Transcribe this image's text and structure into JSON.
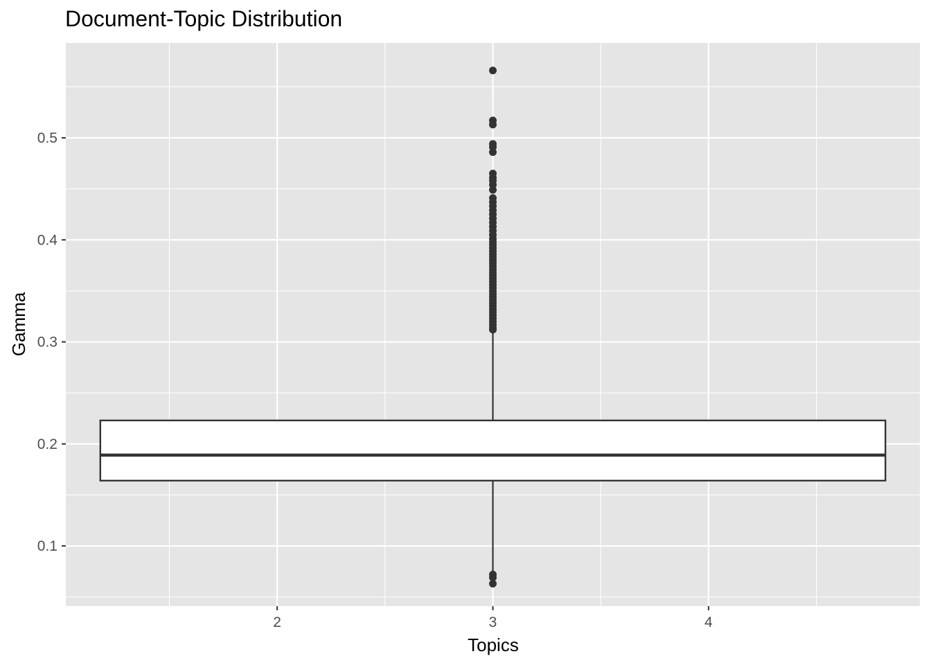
{
  "chart_data": {
    "type": "boxplot",
    "title": "Document-Topic Distribution",
    "xlabel": "Topics",
    "ylabel": "Gamma",
    "x_ticks": [
      2,
      3,
      4
    ],
    "x_tick_labels": [
      "2",
      "3",
      "4"
    ],
    "y_ticks": [
      0.1,
      0.2,
      0.3,
      0.4,
      0.5
    ],
    "y_tick_labels": [
      "0.1",
      "0.2",
      "0.3",
      "0.4",
      "0.5"
    ],
    "xlim": [
      1.02,
      4.98
    ],
    "ylim": [
      0.041,
      0.593
    ],
    "grid": true,
    "box": {
      "x": 3,
      "x_span": [
        1.18,
        4.82
      ],
      "lower_whisker": 0.064,
      "q1": 0.164,
      "median": 0.189,
      "q3": 0.223,
      "upper_whisker": 0.312
    },
    "outliers": [
      0.566,
      0.517,
      0.513,
      0.494,
      0.491,
      0.486,
      0.465,
      0.461,
      0.458,
      0.454,
      0.449,
      0.441,
      0.437,
      0.433,
      0.429,
      0.425,
      0.421,
      0.417,
      0.413,
      0.409,
      0.405,
      0.401,
      0.398,
      0.395,
      0.392,
      0.389,
      0.386,
      0.383,
      0.38,
      0.377,
      0.374,
      0.371,
      0.368,
      0.365,
      0.362,
      0.359,
      0.356,
      0.353,
      0.35,
      0.347,
      0.344,
      0.341,
      0.338,
      0.335,
      0.332,
      0.329,
      0.326,
      0.323,
      0.32,
      0.317,
      0.314,
      0.312,
      0.072,
      0.069,
      0.063
    ],
    "colors": {
      "panel_background": "#e5e5e5",
      "grid": "#ffffff",
      "box_fill": "#ffffff",
      "box_line": "#333333",
      "points": "#333333"
    }
  }
}
